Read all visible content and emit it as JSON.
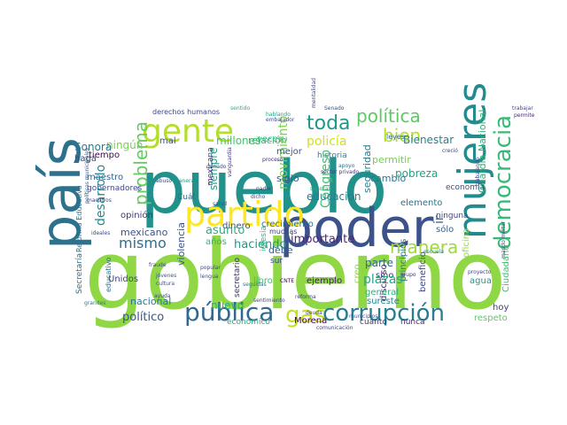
{
  "word_cloud": {
    "words": [
      {
        "text": "gobierno",
        "color": "#8fd744"
      },
      {
        "text": "pueblo",
        "color": "#21918c"
      },
      {
        "text": "poder",
        "color": "#3b528b"
      },
      {
        "text": "país",
        "color": "#2c718e"
      },
      {
        "text": "gente",
        "color": "#b5de2b"
      },
      {
        "text": "partido",
        "color": "#fde725"
      },
      {
        "text": "mujeres",
        "color": "#238a8d"
      },
      {
        "text": "corrupción",
        "color": "#287d8e"
      },
      {
        "text": "pública",
        "color": "#31688e"
      },
      {
        "text": "gas",
        "color": "#c2df23"
      },
      {
        "text": "democracia",
        "color": "#38b977"
      },
      {
        "text": "manera",
        "color": "#a0da39"
      },
      {
        "text": "toda",
        "color": "#1f988b"
      },
      {
        "text": "política",
        "color": "#5ec962"
      },
      {
        "text": "bien",
        "color": "#b5de2b"
      },
      {
        "text": "problema",
        "color": "#63cb5f"
      },
      {
        "text": "mismo",
        "color": "#2e6f8e"
      },
      {
        "text": "ningún",
        "color": "#7ad151"
      },
      {
        "text": "derechos humanos",
        "color": "#3f4788"
      },
      {
        "text": "veces",
        "color": "#29af7f"
      },
      {
        "text": "mal",
        "color": "#3b528b"
      },
      {
        "text": "millones",
        "color": "#4ac16d"
      },
      {
        "text": "relación",
        "color": "#35b779"
      },
      {
        "text": "policía",
        "color": "#d2e21b"
      },
      {
        "text": "Bienestar",
        "color": "#25838e"
      },
      {
        "text": "movimiento",
        "color": "#7ad151"
      },
      {
        "text": "leyes",
        "color": "#31688e"
      },
      {
        "text": "seguridad",
        "color": "#277f8e"
      },
      {
        "text": "Guardia Nacional",
        "color": "#2db27d"
      },
      {
        "text": "Sonora",
        "color": "#2a788e"
      },
      {
        "text": "haga",
        "color": "#3e4989"
      },
      {
        "text": "tiempo",
        "color": "#440154"
      },
      {
        "text": "maestro",
        "color": "#355f8d"
      },
      {
        "text": "gobernadores",
        "color": "#404688"
      },
      {
        "text": "desarrollo",
        "color": "#24878e"
      },
      {
        "text": "Reforma Educativa",
        "color": "#2c728e"
      },
      {
        "text": "Cuál",
        "color": "#2f6b8e"
      },
      {
        "text": "siempre",
        "color": "#1f9e89"
      },
      {
        "text": "mexicana",
        "color": "#472f7d"
      },
      {
        "text": "historia",
        "color": "#25858e"
      },
      {
        "text": "mejor",
        "color": "#3a548c"
      },
      {
        "text": "Congreso",
        "color": "#44bf70"
      },
      {
        "text": "siglo",
        "color": "#39568c"
      },
      {
        "text": "permitir",
        "color": "#75d054"
      },
      {
        "text": "cambio",
        "color": "#2c738e"
      },
      {
        "text": "pobreza",
        "color": "#20a386"
      },
      {
        "text": "economía",
        "color": "#3b528b"
      },
      {
        "text": "educación",
        "color": "#287c8e"
      },
      {
        "text": "elemento",
        "color": "#2b758e"
      },
      {
        "text": "ir",
        "color": "#35608d"
      },
      {
        "text": "sólo",
        "color": "#33638d"
      },
      {
        "text": "ninguna",
        "color": "#414487"
      },
      {
        "text": "opinión",
        "color": "#46337f"
      },
      {
        "text": "mexicano",
        "color": "#3b528b"
      },
      {
        "text": "dinero",
        "color": "#3e4a89"
      },
      {
        "text": "crecimiento",
        "color": "#2c728e"
      },
      {
        "text": "muchas",
        "color": "#424186"
      },
      {
        "text": "asunto",
        "color": "#29af7f"
      },
      {
        "text": "haciendo",
        "color": "#1f9a8a"
      },
      {
        "text": "importante",
        "color": "#482677"
      },
      {
        "text": "años",
        "color": "#2db27d"
      },
      {
        "text": "violencia",
        "color": "#3a548c"
      },
      {
        "text": "debe",
        "color": "#33638d"
      },
      {
        "text": "iglesia",
        "color": "#35b779"
      },
      {
        "text": "ejemplo",
        "color": "#482173"
      },
      {
        "text": "parte",
        "color": "#31688e"
      },
      {
        "text": "creo",
        "color": "#8fd744"
      },
      {
        "text": "sino",
        "color": "#46307e"
      },
      {
        "text": "principios",
        "color": "#2a778e"
      },
      {
        "text": "Ciudadano",
        "color": "#3dbc74"
      },
      {
        "text": "agua",
        "color": "#1f9a8a"
      },
      {
        "text": "Unidos",
        "color": "#404588"
      },
      {
        "text": "Secretaría",
        "color": "#2e6e8e"
      },
      {
        "text": "educativo",
        "color": "#2e6e8e"
      },
      {
        "text": "libro",
        "color": "#40bd72"
      },
      {
        "text": "secretario",
        "color": "#472c7a"
      },
      {
        "text": "sur",
        "color": "#3f4889"
      },
      {
        "text": "discurso",
        "color": "#482475"
      },
      {
        "text": "plazas",
        "color": "#22a785"
      },
      {
        "text": "beneficio",
        "color": "#3e4989"
      },
      {
        "text": "hoy",
        "color": "#443983"
      },
      {
        "text": "nacional",
        "color": "#29798e"
      },
      {
        "text": "nuevo",
        "color": "#27ad81"
      },
      {
        "text": "general",
        "color": "#2ab07f"
      },
      {
        "text": "sureste",
        "color": "#26828e"
      },
      {
        "text": "político",
        "color": "#39568c"
      },
      {
        "text": "económico",
        "color": "#25ab82"
      },
      {
        "text": "Morena",
        "color": "#440154"
      },
      {
        "text": "cuanto",
        "color": "#46337f"
      },
      {
        "text": "nunca",
        "color": "#482677"
      },
      {
        "text": "respeto",
        "color": "#5ec962"
      },
      {
        "text": "oficina",
        "color": "#95d840"
      },
      {
        "text": "escuela",
        "color": "#26828e"
      },
      {
        "text": "políticas municipales",
        "color": "#355f8d"
      },
      {
        "text": "ideales",
        "color": "#3e4a89"
      },
      {
        "text": "grandes",
        "color": "#2a788e"
      },
      {
        "text": "trabajar",
        "color": "#3f4788"
      },
      {
        "text": "permite",
        "color": "#482878"
      },
      {
        "text": "sentido",
        "color": "#27ad81"
      },
      {
        "text": "Senado",
        "color": "#3b528b"
      },
      {
        "text": "embajador",
        "color": "#3e4989"
      },
      {
        "text": "mentalidad",
        "color": "#3f4788"
      },
      {
        "text": "hablando",
        "color": "#1fa088"
      },
      {
        "text": "trabajando",
        "color": "#3f4788"
      },
      {
        "text": "señoras",
        "color": "#22a884"
      },
      {
        "text": "sector privado",
        "color": "#46337f"
      },
      {
        "text": "apoyo",
        "color": "#2d708e"
      },
      {
        "text": "proceso",
        "color": "#472d7b"
      },
      {
        "text": "vanguardia",
        "color": "#46327e"
      },
      {
        "text": "cultura",
        "color": "#3a548c"
      },
      {
        "text": "jóvenes",
        "color": "#3b528b"
      },
      {
        "text": "popular",
        "color": "#3f4788"
      },
      {
        "text": "lengua",
        "color": "#3e4989"
      },
      {
        "text": "fraude",
        "color": "#3e4a89"
      },
      {
        "text": "ayuda",
        "color": "#3f4889"
      },
      {
        "text": "comunicación",
        "color": "#3f4788"
      },
      {
        "text": "deuda",
        "color": "#3e4989"
      },
      {
        "text": "municipios",
        "color": "#3b528b"
      },
      {
        "text": "reforma",
        "color": "#424086"
      },
      {
        "text": "seguidas",
        "color": "#2a788e"
      },
      {
        "text": "sentimiento",
        "color": "#3f4788"
      },
      {
        "text": "creció",
        "color": "#3f4788"
      },
      {
        "text": "mando militar",
        "color": "#3f4788"
      },
      {
        "text": "proyecto",
        "color": "#3e4989"
      },
      {
        "text": "grupo",
        "color": "#46337f"
      },
      {
        "text": "CNTE",
        "color": "#440154"
      },
      {
        "text": "dicho",
        "color": "#3f4788"
      },
      {
        "text": "nadie",
        "color": "#3f4788"
      },
      {
        "text": "abuso",
        "color": "#3f4788"
      },
      {
        "text": "ganado",
        "color": "#3e4989"
      },
      {
        "text": "manera",
        "color": "#1f9a8a"
      },
      {
        "text": "maestros",
        "color": "#3f4788"
      },
      {
        "text": "salud",
        "color": "#3b528b"
      }
    ]
  }
}
